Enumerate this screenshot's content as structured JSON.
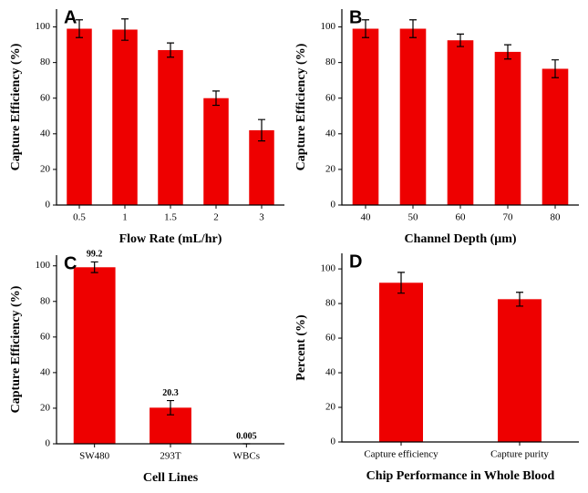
{
  "chart_data": [
    {
      "type": "bar",
      "label": "A",
      "x_label": "Flow Rate (mL/hr)",
      "y_label": "Capture Efficiency (%)",
      "categories": [
        "0.5",
        "1",
        "1.5",
        "2",
        "3"
      ],
      "values": [
        99,
        98.5,
        87,
        60,
        42
      ],
      "errors": [
        5,
        6,
        4,
        4,
        6
      ],
      "color": "#ee0000",
      "ylim": [
        0,
        110
      ],
      "yticks": [
        0,
        20,
        40,
        60,
        80,
        100
      ]
    },
    {
      "type": "bar",
      "label": "B",
      "x_label": "Channel Depth (μm)",
      "y_label": "Capture Efficiency (%)",
      "categories": [
        "40",
        "50",
        "60",
        "70",
        "80"
      ],
      "values": [
        99,
        99,
        92.5,
        86,
        76.5
      ],
      "errors": [
        5,
        5,
        3.5,
        4,
        5
      ],
      "color": "#ee0000",
      "ylim": [
        0,
        110
      ],
      "yticks": [
        0,
        20,
        40,
        60,
        80,
        100
      ]
    },
    {
      "type": "bar",
      "label": "C",
      "x_label": "Cell Lines",
      "y_label": "Capture Efficiency (%)",
      "categories": [
        "SW480",
        "293T",
        "WBCs"
      ],
      "values": [
        99.2,
        20.3,
        0.005
      ],
      "errors": [
        3,
        4,
        0
      ],
      "color": "#ee0000",
      "ylim": [
        0,
        106
      ],
      "yticks": [
        0,
        20,
        40,
        60,
        80,
        100
      ],
      "data_labels": true
    },
    {
      "type": "bar",
      "label": "D",
      "x_label": "Chip Performance in Whole Blood",
      "y_label": "Percent (%)",
      "categories": [
        "Capture efficiency",
        "Capture purity"
      ],
      "values": [
        92,
        82.5
      ],
      "errors": [
        6,
        4
      ],
      "color": "#ee0000",
      "ylim": [
        0,
        109
      ],
      "yticks": [
        0,
        20,
        40,
        60,
        80,
        100
      ]
    }
  ]
}
